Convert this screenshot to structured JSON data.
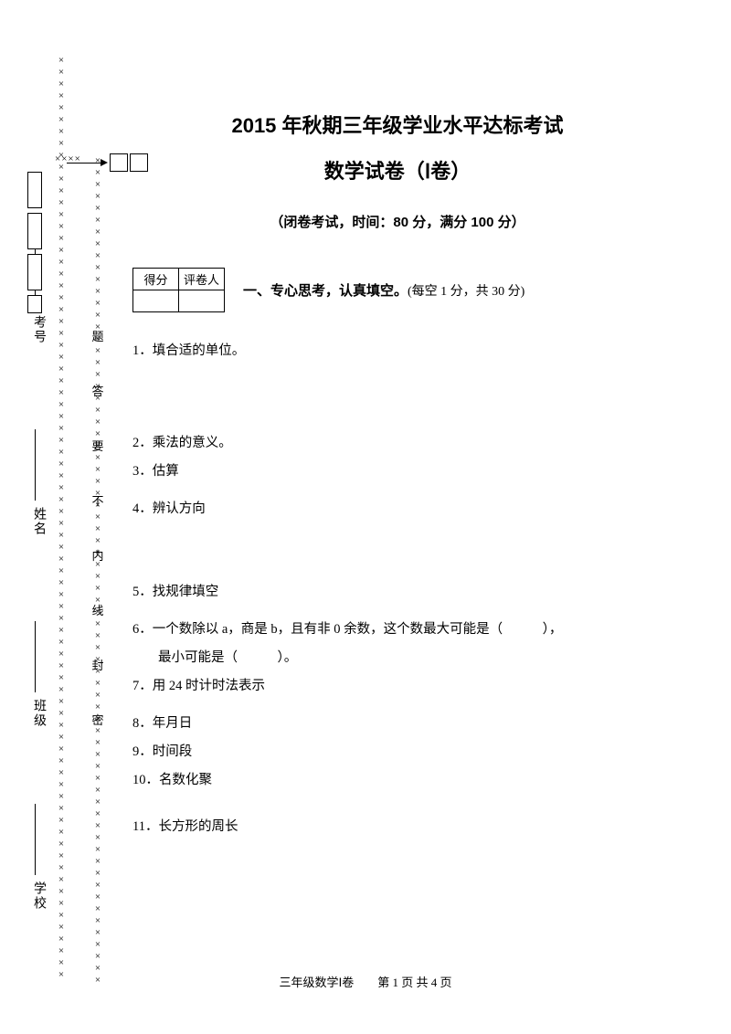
{
  "title_line1": "2015 年秋期三年级学业水平达标考试",
  "title_line2": "数学试卷（Ⅰ卷）",
  "exam_info": "（闭卷考试，时间：80 分，满分 100 分）",
  "score_table": {
    "header_score": "得分",
    "header_grader": "评卷人"
  },
  "section1": {
    "label": "一、专心思考，认真填空。",
    "note": "(每空 1 分，共 30 分)"
  },
  "questions": {
    "q1": "1．填合适的单位。",
    "q2": "2．乘法的意义。",
    "q3": "3．估算",
    "q4": "4．辨认方向",
    "q5": "5．找规律填空",
    "q6a": "6．一个数除以 a，商是 b，且有非 0 余数，这个数最大可能是（　　　），",
    "q6b": "最小可能是（　　　）。",
    "q7": "7．用 24 时计时法表示",
    "q8": "8．年月日",
    "q9": "9．时间段",
    "q10": "10．名数化聚",
    "q11": "11．长方形的周长"
  },
  "seal_line_chars": [
    "题",
    "答",
    "要",
    "不",
    "内",
    "线",
    "封",
    "密"
  ],
  "bind_labels": {
    "exam_no": "考号",
    "name": "姓名",
    "class": "班级",
    "school": "学校"
  },
  "footer": "三年级数学Ⅰ卷　　第 1 页 共 4 页",
  "colors": {
    "text": "#000000",
    "bg": "#ffffff",
    "border": "#000000"
  }
}
